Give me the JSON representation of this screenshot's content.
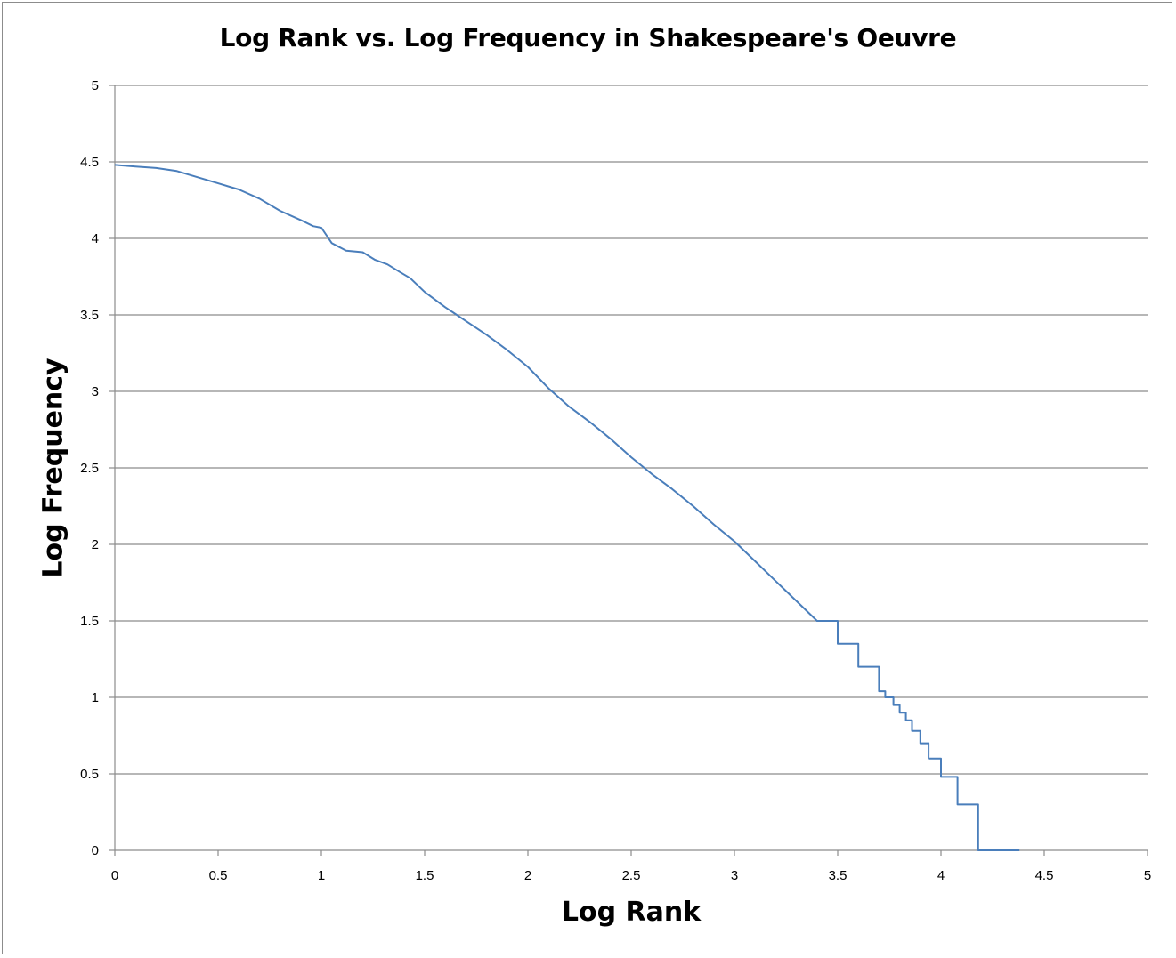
{
  "chart_data": {
    "type": "line",
    "title": "Log Rank vs. Log Frequency in Shakespeare's Oeuvre",
    "xlabel": "Log Rank",
    "ylabel": "Log Frequency",
    "xlim": [
      0,
      5
    ],
    "ylim": [
      0,
      5
    ],
    "x_ticks": [
      "0",
      "0.5",
      "1",
      "1.5",
      "2",
      "2.5",
      "3",
      "3.5",
      "4",
      "4.5",
      "5"
    ],
    "y_ticks": [
      "0",
      "0.5",
      "1",
      "1.5",
      "2",
      "2.5",
      "3",
      "3.5",
      "4",
      "4.5",
      "5"
    ],
    "grid": "horizontal",
    "legend": "none",
    "line_color": "#4a7ebb",
    "series": [
      {
        "x": [
          0,
          0.1,
          0.2,
          0.3,
          0.4,
          0.5,
          0.6,
          0.7,
          0.8,
          0.9,
          0.96,
          1.0,
          1.05,
          1.12,
          1.2,
          1.26,
          1.32,
          1.38,
          1.43,
          1.5,
          1.6,
          1.7,
          1.8,
          1.9,
          2.0,
          2.1,
          2.2,
          2.3,
          2.4,
          2.5,
          2.6,
          2.7,
          2.8,
          2.9,
          3.0,
          3.1,
          3.2,
          3.3,
          3.4,
          3.5,
          3.6,
          3.7,
          3.73,
          3.77,
          3.8,
          3.83,
          3.86,
          3.9,
          3.94,
          4.0,
          4.08,
          4.18,
          4.38
        ],
        "y": [
          4.48,
          4.47,
          4.46,
          4.44,
          4.4,
          4.36,
          4.32,
          4.26,
          4.18,
          4.12,
          4.08,
          4.07,
          3.97,
          3.92,
          3.91,
          3.86,
          3.83,
          3.78,
          3.74,
          3.65,
          3.55,
          3.46,
          3.37,
          3.27,
          3.16,
          3.02,
          2.9,
          2.8,
          2.69,
          2.57,
          2.46,
          2.36,
          2.25,
          2.13,
          2.02,
          1.89,
          1.76,
          1.63,
          1.5,
          1.35,
          1.2,
          1.04,
          1.0,
          0.95,
          0.9,
          0.85,
          0.78,
          0.7,
          0.6,
          0.48,
          0.3,
          0.0,
          0.0
        ],
        "step_from_x": 3.4
      }
    ]
  }
}
